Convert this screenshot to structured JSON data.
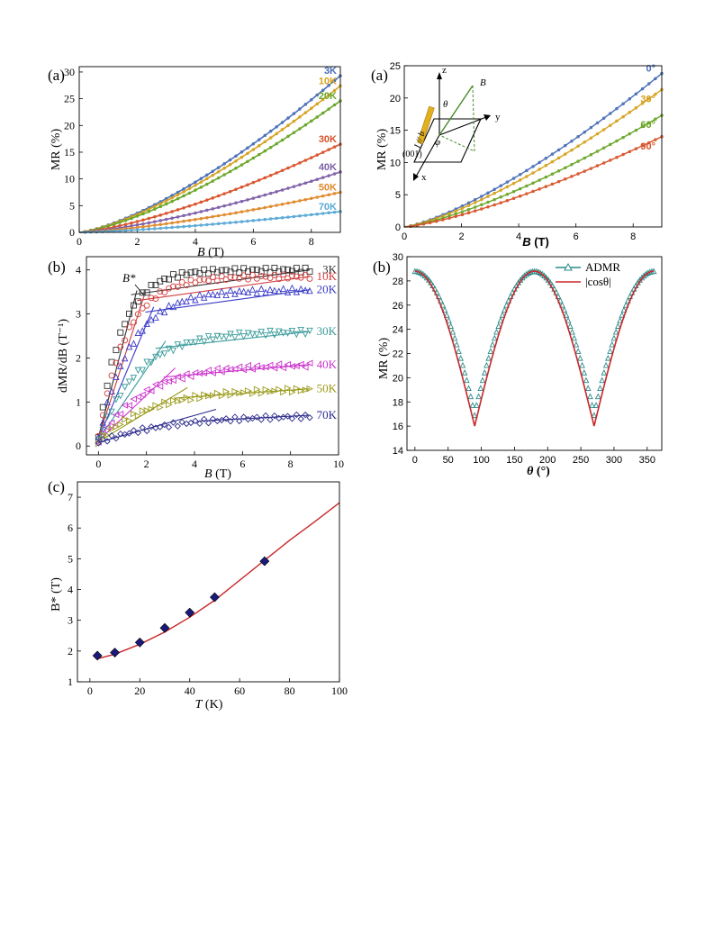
{
  "panels": {
    "p1": {
      "label": "(a)"
    },
    "p2": {
      "label": "(a)"
    },
    "p3": {
      "label": "(b)"
    },
    "p4": {
      "label": "(b)"
    },
    "p5": {
      "label": "(c)"
    }
  },
  "chart_data": [
    {
      "id": "p1",
      "type": "line",
      "xlabel_var": "B",
      "xlabel_unit": " (T)",
      "ylabel": "MR (%)",
      "xlim": [
        0,
        9
      ],
      "ylim": [
        0,
        31
      ],
      "xticks": [
        0,
        2,
        4,
        6,
        8
      ],
      "yticks": [
        0,
        5,
        10,
        15,
        20,
        25,
        30
      ],
      "series": [
        {
          "name": "3K",
          "color": "#4a6fb8",
          "end": 29.3
        },
        {
          "name": "10K",
          "color": "#d6a21e",
          "end": 27.4
        },
        {
          "name": "20K",
          "color": "#6aa628",
          "end": 24.6
        },
        {
          "name": "30K",
          "color": "#d9532a",
          "end": 16.5
        },
        {
          "name": "40K",
          "color": "#7f5fa8",
          "end": 11.3
        },
        {
          "name": "50K",
          "color": "#e08a2b",
          "end": 7.5
        },
        {
          "name": "70K",
          "color": "#5aa9d6",
          "end": 3.9
        }
      ]
    },
    {
      "id": "p2",
      "type": "line",
      "xlabel_var": "B",
      "xlabel_unit": " (T)",
      "ylabel": "MR (%)",
      "xlim": [
        0,
        9
      ],
      "ylim": [
        0,
        25
      ],
      "xticks": [
        0,
        2,
        4,
        6,
        8
      ],
      "yticks": [
        0,
        5,
        10,
        15,
        20,
        25
      ],
      "series": [
        {
          "name": "0°",
          "color": "#4a6fb8",
          "end": 23.8
        },
        {
          "name": "30°",
          "color": "#d6a21e",
          "end": 21.3
        },
        {
          "name": "60°",
          "color": "#6aa628",
          "end": 17.3
        },
        {
          "name": "90°",
          "color": "#d9532a",
          "end": 14.0
        }
      ],
      "inset": {
        "z": "z",
        "y": "y",
        "x": "x",
        "B": "B",
        "theta": "θ",
        "phi": "φ",
        "current": "I // b",
        "face": "(001)"
      }
    },
    {
      "id": "p3",
      "type": "scatter",
      "xlabel_var": "B",
      "xlabel_unit": " (T)",
      "ylabel": "dMR/dB (T⁻¹)",
      "xlim": [
        -0.5,
        10
      ],
      "ylim": [
        -0.2,
        4.3
      ],
      "xticks": [
        0,
        2,
        4,
        6,
        8,
        10
      ],
      "yticks": [
        0,
        1,
        2,
        3,
        4
      ],
      "annotation": "B*",
      "series": [
        {
          "name": "3K",
          "color": "#333333",
          "marker": "square",
          "sat": 4.0,
          "kink": 1.6
        },
        {
          "name": "10K",
          "color": "#d23c3c",
          "marker": "circle",
          "sat": 3.85,
          "kink": 1.9
        },
        {
          "name": "20K",
          "color": "#3a3ac8",
          "marker": "triangle",
          "sat": 3.55,
          "kink": 2.3
        },
        {
          "name": "30K",
          "color": "#3a9a9a",
          "marker": "triangle-down",
          "sat": 2.6,
          "kink": 2.8
        },
        {
          "name": "40K",
          "color": "#cc33cc",
          "marker": "triangle-left",
          "sat": 1.85,
          "kink": 3.2
        },
        {
          "name": "50K",
          "color": "#9a9a1a",
          "marker": "triangle-right",
          "sat": 1.3,
          "kink": 3.7
        },
        {
          "name": "70K",
          "color": "#2a2a8a",
          "marker": "diamond",
          "sat": 0.7,
          "kink": 4.9
        }
      ]
    },
    {
      "id": "p4",
      "type": "line",
      "xlabel_var": "θ",
      "xlabel_unit": " (°)",
      "ylabel": "MR (%)",
      "xlim": [
        -12,
        372
      ],
      "ylim": [
        14,
        30
      ],
      "xticks": [
        0,
        50,
        100,
        150,
        200,
        250,
        300,
        350
      ],
      "yticks": [
        14,
        16,
        18,
        20,
        22,
        24,
        26,
        28,
        30
      ],
      "series": [
        {
          "name": "ADMR",
          "color": "#2b8a8a",
          "marker": "triangle"
        },
        {
          "name": "|cosθ|",
          "color": "#c8282a",
          "marker": "none"
        }
      ],
      "model": {
        "min": 16.0,
        "max": 28.8
      }
    },
    {
      "id": "p5",
      "type": "scatter",
      "xlabel_var": "T",
      "xlabel_unit": " (K)",
      "ylabel": "B* (T)",
      "xlim": [
        -5,
        100
      ],
      "ylim": [
        1,
        7.5
      ],
      "xticks": [
        0,
        20,
        40,
        60,
        80,
        100
      ],
      "yticks": [
        1,
        2,
        3,
        4,
        5,
        6,
        7
      ],
      "series": [
        {
          "name": "data",
          "color": "#1a1a7a",
          "x": [
            3,
            10,
            20,
            30,
            40,
            50,
            70
          ],
          "y": [
            1.85,
            1.95,
            2.28,
            2.75,
            3.25,
            3.75,
            4.92
          ]
        },
        {
          "name": "fit",
          "color": "#c8282a",
          "x": [
            3,
            10,
            20,
            30,
            40,
            50,
            60,
            70,
            80,
            90,
            100
          ],
          "y": [
            1.75,
            1.9,
            2.22,
            2.62,
            3.1,
            3.65,
            4.3,
            4.95,
            5.6,
            6.2,
            6.82
          ]
        }
      ]
    }
  ]
}
